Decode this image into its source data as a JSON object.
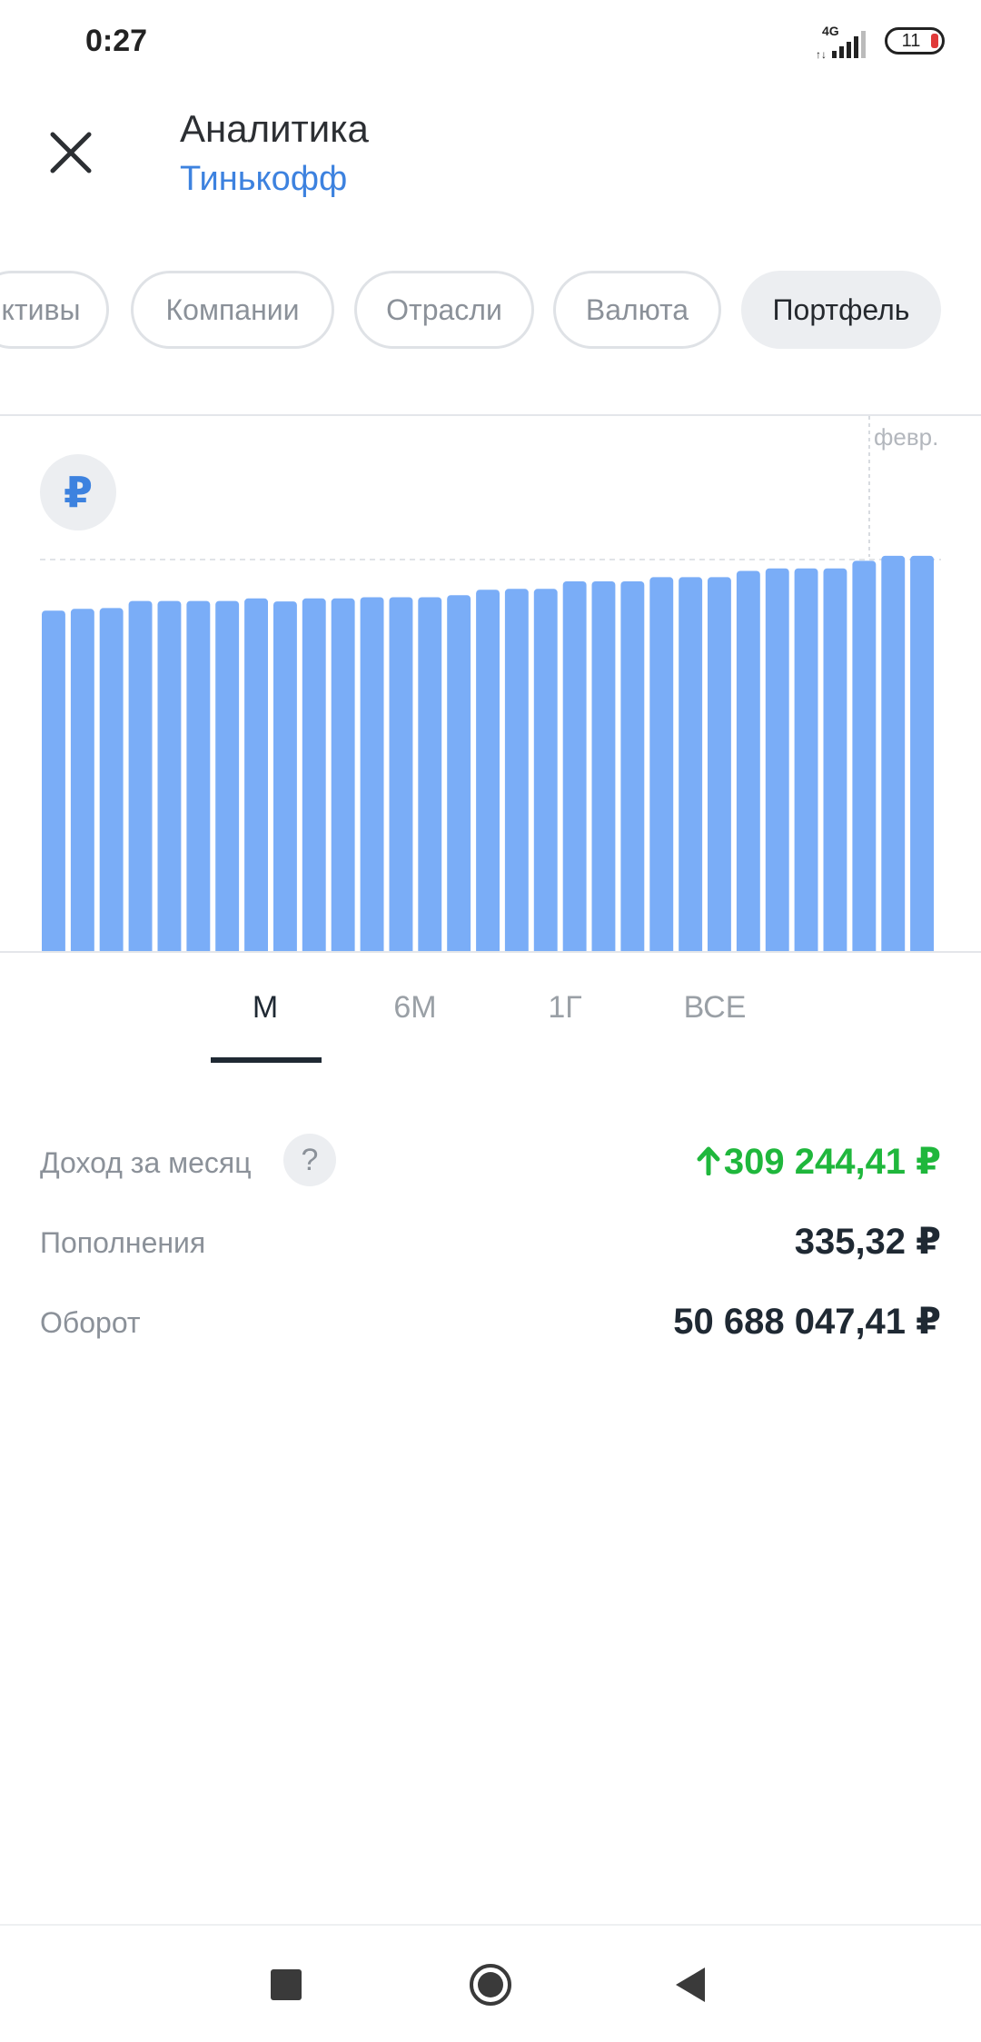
{
  "status_bar": {
    "time": "0:27",
    "network": "4G",
    "battery": "11"
  },
  "header": {
    "title": "Аналитика",
    "subtitle": "Тинькофф"
  },
  "chips": [
    {
      "label": "ктивы",
      "active": false
    },
    {
      "label": "Компании",
      "active": false
    },
    {
      "label": "Отрасли",
      "active": false
    },
    {
      "label": "Валюта",
      "active": false
    },
    {
      "label": "Портфель",
      "active": true
    }
  ],
  "chart": {
    "currency_symbol": "₽",
    "month_label": "февр.",
    "accent_color": "#7aadf7"
  },
  "chart_data": {
    "type": "bar",
    "values": [
      81.7,
      82.1,
      82.3,
      84,
      84,
      84,
      84,
      84.6,
      83.9,
      84.6,
      84.6,
      84.9,
      84.9,
      84.9,
      85.4,
      86.7,
      86.9,
      86.9,
      88.7,
      88.7,
      88.7,
      89.7,
      89.7,
      89.7,
      91.2,
      91.8,
      91.8,
      91.8,
      93.6,
      94.8,
      94.8
    ],
    "ylim": [
      0,
      100
    ],
    "grid": false
  },
  "period_tabs": [
    {
      "label": "М",
      "active": true
    },
    {
      "label": "6М",
      "active": false
    },
    {
      "label": "1Г",
      "active": false
    },
    {
      "label": "ВСЕ",
      "active": false
    }
  ],
  "stats": {
    "income": {
      "label": "Доход за месяц",
      "help": "?",
      "value": "309 244,41 ₽",
      "color": "#1fb73c"
    },
    "deposits": {
      "label": "Пополнения",
      "value": "335,32 ₽"
    },
    "turnover": {
      "label": "Оборот",
      "value": "50 688 047,41 ₽"
    }
  }
}
